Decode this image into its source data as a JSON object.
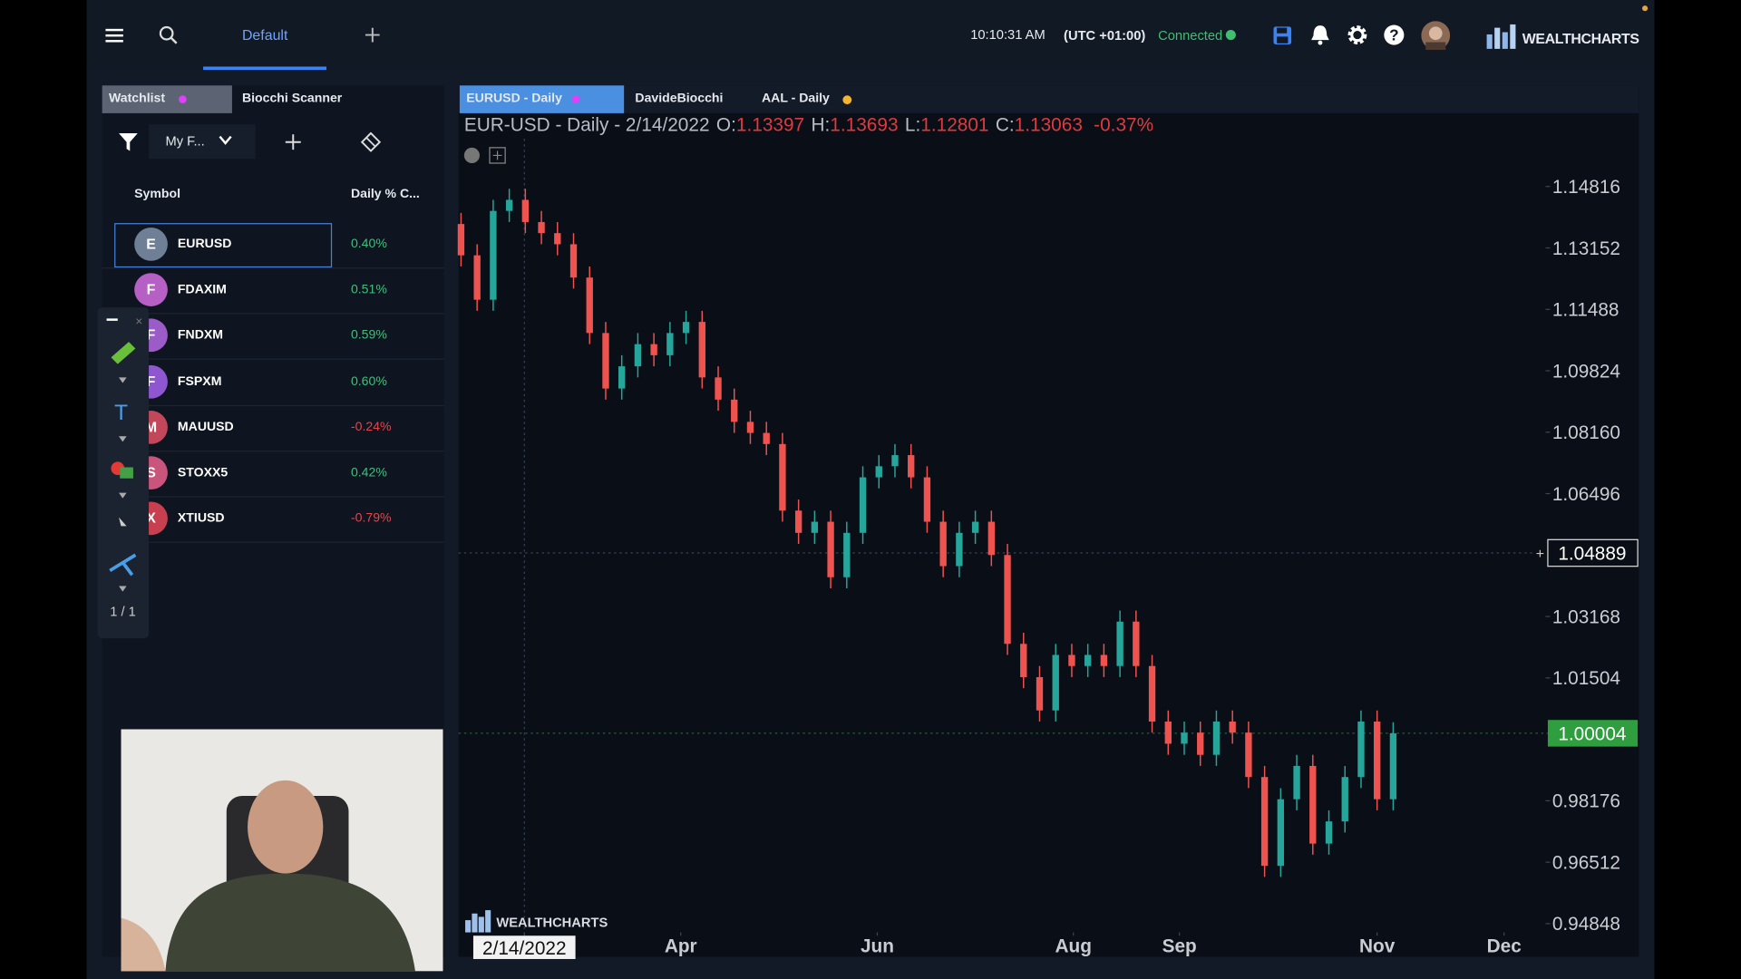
{
  "topbar": {
    "tab": "Default",
    "time": "10:10:31 AM",
    "timezone": "(UTC +01:00)",
    "status": "Connected",
    "logo": "WEALTHCHARTS"
  },
  "watchlist": {
    "tabs": [
      "Watchlist",
      "Biocchi Scanner"
    ],
    "filter": "My F...",
    "columns": [
      "Symbol",
      "Daily % C..."
    ],
    "rows": [
      {
        "icon": "E",
        "icon_color": "#6f7f95",
        "symbol": "EURUSD",
        "change": {
          "value": 0.4,
          "label": "0.40%"
        }
      },
      {
        "icon": "F",
        "icon_color": "#b65fc4",
        "symbol": "FDAXIM",
        "change": {
          "value": 0.51,
          "label": "0.51%"
        }
      },
      {
        "icon": "F",
        "icon_color": "#9b5cc8",
        "symbol": "FNDXM",
        "change": {
          "value": 0.59,
          "label": "0.59%"
        }
      },
      {
        "icon": "F",
        "icon_color": "#8f57cf",
        "symbol": "FSPXM",
        "change": {
          "value": 0.6,
          "label": "0.60%"
        }
      },
      {
        "icon": "M",
        "icon_color": "#c3475a",
        "symbol": "MAUUSD",
        "change": {
          "value": -0.24,
          "label": "-0.24%"
        }
      },
      {
        "icon": "S",
        "icon_color": "#c9557c",
        "symbol": "STOXX5",
        "change": {
          "value": 0.42,
          "label": "0.42%"
        }
      },
      {
        "icon": "X",
        "icon_color": "#c8404f",
        "symbol": "XTIUSD",
        "change": {
          "value": -0.79,
          "label": "-0.79%"
        }
      }
    ]
  },
  "drawing_toolbar": {
    "page": "1 / 1"
  },
  "chart_tabs": [
    "EURUSD - Daily",
    "DavideBiocchi",
    "AAL - Daily"
  ],
  "chart_data": {
    "type": "candlestick",
    "title": "EUR-USD - Daily - 2/14/2022",
    "ohlc": [
      {
        "label": "O:",
        "value": 1.13397
      },
      {
        "label": "H:",
        "value": 1.13693
      },
      {
        "label": "L:",
        "value": 1.12801
      },
      {
        "label": "C:",
        "value": 1.13063
      }
    ],
    "change": "-0.37%",
    "watermark": "WEALTHCHARTS",
    "up_color": "#26a69a",
    "down_color": "#ef5350",
    "open": [
      1.138,
      1.12952,
      1.11749,
      1.14155,
      1.14455,
      1.13854,
      1.13553,
      1.13252,
      1.1235,
      1.10847,
      1.09343,
      1.09945,
      1.10546,
      1.10245,
      1.10847,
      1.11148,
      1.09644,
      1.09043,
      1.08441,
      1.08141,
      1.0784,
      1.06036,
      1.05434,
      1.05735,
      1.04231,
      1.05434,
      1.06938,
      1.07238,
      1.07539,
      1.06938,
      1.05735,
      1.04532,
      1.05434,
      1.05735,
      1.04833,
      1.02427,
      1.01525,
      1.00623,
      1.02127,
      1.01826,
      1.02127,
      1.01826,
      1.03029,
      1.01826,
      1.00322,
      0.99721,
      1.00022,
      0.9942,
      1.00322,
      1.00022,
      0.98819,
      0.96413,
      0.98217,
      0.9912,
      0.97015,
      0.97616,
      0.98819,
      1.00322,
      0.98217
    ],
    "high": [
      1.141,
      1.13252,
      1.14455,
      1.14755,
      1.14755,
      1.14154,
      1.13853,
      1.13552,
      1.1265,
      1.11147,
      1.10245,
      1.10846,
      1.10846,
      1.11147,
      1.11448,
      1.11448,
      1.09944,
      1.09343,
      1.08741,
      1.08441,
      1.0814,
      1.06336,
      1.06035,
      1.06035,
      1.05734,
      1.07238,
      1.07538,
      1.07839,
      1.07839,
      1.07238,
      1.06035,
      1.05734,
      1.06035,
      1.06035,
      1.05133,
      1.02727,
      1.01825,
      1.02427,
      1.02427,
      1.02427,
      1.02427,
      1.03329,
      1.03329,
      1.02126,
      1.00622,
      1.00322,
      1.00322,
      1.00622,
      1.00622,
      1.00322,
      0.99119,
      0.98517,
      0.9942,
      0.9942,
      0.97916,
      0.99119,
      1.00622,
      1.00622,
      1.00304
    ],
    "low": [
      1.12652,
      1.11449,
      1.11449,
      1.13855,
      1.13554,
      1.13253,
      1.12952,
      1.1205,
      1.10547,
      1.09043,
      1.09043,
      1.09645,
      1.09945,
      1.09945,
      1.10547,
      1.09344,
      1.08743,
      1.08141,
      1.07841,
      1.0754,
      1.05736,
      1.05134,
      1.05134,
      1.03931,
      1.03931,
      1.05134,
      1.06638,
      1.06938,
      1.06638,
      1.05435,
      1.04232,
      1.04232,
      1.05134,
      1.04533,
      1.02127,
      1.01225,
      1.00323,
      1.00323,
      1.01526,
      1.01526,
      1.01526,
      1.01526,
      1.01526,
      1.00022,
      0.99421,
      0.99421,
      0.9912,
      0.9912,
      0.99722,
      0.98519,
      0.96113,
      0.96113,
      0.97917,
      0.96715,
      0.96715,
      0.97316,
      0.98519,
      0.97917,
      0.97917
    ],
    "close": [
      1.12952,
      1.11749,
      1.14155,
      1.14455,
      1.13854,
      1.13553,
      1.13252,
      1.1235,
      1.10847,
      1.09343,
      1.09945,
      1.10546,
      1.10245,
      1.10847,
      1.11148,
      1.09644,
      1.09043,
      1.08441,
      1.08141,
      1.0784,
      1.06036,
      1.05434,
      1.05735,
      1.04231,
      1.05434,
      1.06938,
      1.07238,
      1.07539,
      1.06938,
      1.05735,
      1.04532,
      1.05434,
      1.05735,
      1.04833,
      1.02427,
      1.01525,
      1.00623,
      1.02127,
      1.01826,
      1.02127,
      1.01826,
      1.03029,
      1.01826,
      1.00322,
      0.99721,
      1.00022,
      0.9942,
      1.00322,
      1.00022,
      0.98819,
      0.96413,
      0.98217,
      0.9912,
      0.97015,
      0.97616,
      0.98819,
      1.00322,
      0.98217,
      1.00004
    ],
    "xlim": [
      -0.5,
      67
    ],
    "xticks": [
      {
        "value": 3.94,
        "label": "2/14/2022"
      },
      {
        "value": 13.67,
        "label": "Apr"
      },
      {
        "value": 25.9,
        "label": "Jun"
      },
      {
        "value": 38.1,
        "label": "Aug"
      },
      {
        "value": 44.7,
        "label": "Sep"
      },
      {
        "value": 57.0,
        "label": "Nov"
      },
      {
        "value": 64.9,
        "label": "Dec"
      }
    ],
    "ylim": [
      0.9455,
      1.1611
    ],
    "yticks": [
      1.14816,
      1.13152,
      1.11488,
      1.09824,
      {
        "value": 1.0816,
        "label": "1.08160"
      },
      1.06496,
      1.03168,
      1.01504,
      0.98176,
      0.96512,
      0.94848
    ],
    "crosshair_price": 1.04889,
    "last_price": 1.00004
  }
}
